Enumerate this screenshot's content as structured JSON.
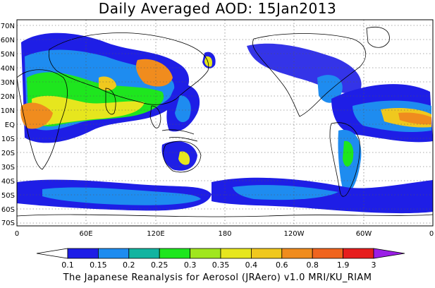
{
  "title": "Daily Averaged AOD: 15Jan2013",
  "footer": "The Japanese Reanalysis for Aerosol (JRAero) v1.0 MRI/KU_RIAM",
  "map": {
    "lat_labels": [
      "70N",
      "60N",
      "50N",
      "40N",
      "30N",
      "20N",
      "10N",
      "EQ",
      "10S",
      "20S",
      "30S",
      "40S",
      "50S",
      "60S",
      "70S"
    ],
    "lon_labels": [
      "0",
      "60E",
      "120E",
      "180",
      "120W",
      "60W",
      "0"
    ]
  },
  "colorbar": {
    "labels": [
      "0.1",
      "0.15",
      "0.2",
      "0.25",
      "0.3",
      "0.35",
      "0.4",
      "0.6",
      "0.8",
      "1.9",
      "3"
    ],
    "colors": [
      "#ffffff",
      "#1e1ee6",
      "#1e8cf0",
      "#12b4a0",
      "#1ee61e",
      "#a0e61e",
      "#e6e61e",
      "#f0c81e",
      "#f08c1e",
      "#f0641e",
      "#e61e1e",
      "#9a1ee6"
    ]
  }
}
